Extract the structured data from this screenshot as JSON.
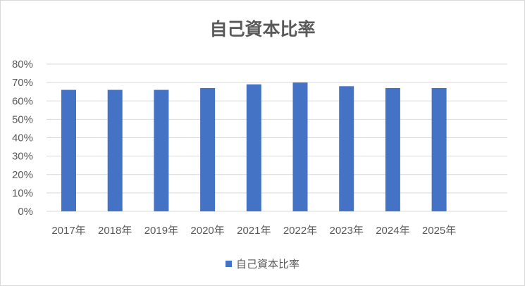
{
  "chart_data": {
    "type": "bar",
    "title": "自己資本比率",
    "categories": [
      "2017年",
      "2018年",
      "2019年",
      "2020年",
      "2021年",
      "2022年",
      "2023年",
      "2024年",
      "2025年"
    ],
    "series": [
      {
        "name": "自己資本比率",
        "values": [
          0.66,
          0.66,
          0.66,
          0.67,
          0.69,
          0.7,
          0.68,
          0.67,
          0.67
        ],
        "color": "#4472c4"
      }
    ],
    "ylim": [
      0,
      0.8
    ],
    "yticks": [
      "0%",
      "10%",
      "20%",
      "30%",
      "40%",
      "50%",
      "60%",
      "70%",
      "80%"
    ],
    "grid": true,
    "legend_position": "bottom"
  }
}
